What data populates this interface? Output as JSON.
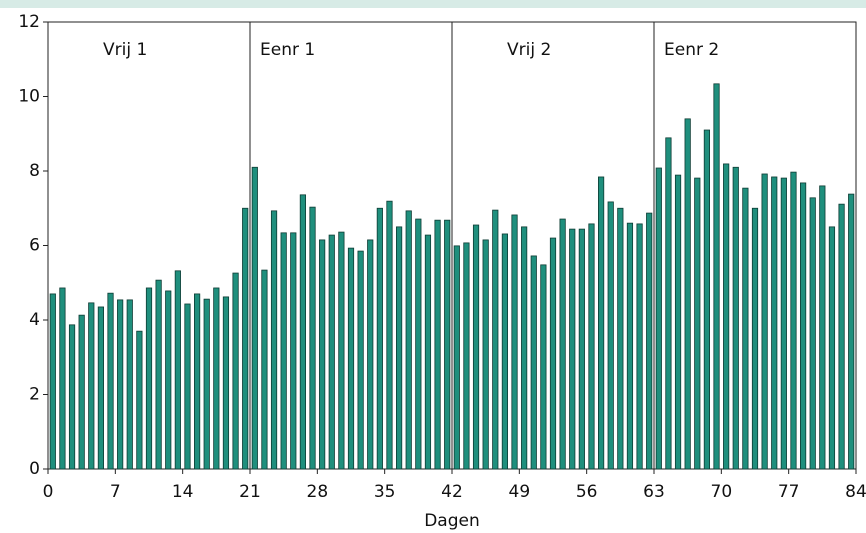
{
  "chart_data": {
    "type": "bar",
    "xlabel": "Dagen",
    "color": "#1f8f7d",
    "x": [
      0,
      1,
      2,
      3,
      4,
      5,
      6,
      7,
      8,
      9,
      10,
      11,
      12,
      13,
      14,
      15,
      16,
      17,
      18,
      19,
      20,
      21,
      22,
      23,
      24,
      25,
      26,
      27,
      28,
      29,
      30,
      31,
      32,
      33,
      34,
      35,
      36,
      37,
      38,
      39,
      40,
      41,
      42,
      43,
      44,
      45,
      46,
      47,
      48,
      49,
      50,
      51,
      52,
      53,
      54,
      55,
      56,
      57,
      58,
      59,
      60,
      61,
      62,
      63,
      64,
      65,
      66,
      67,
      68,
      69,
      70,
      71,
      72,
      73,
      74,
      75,
      76,
      77,
      78,
      79,
      80,
      81,
      82,
      83
    ],
    "values": [
      4.7,
      4.86,
      3.87,
      4.13,
      4.46,
      4.35,
      4.72,
      4.54,
      4.54,
      3.7,
      4.86,
      5.07,
      4.78,
      5.32,
      4.43,
      4.7,
      4.56,
      4.86,
      4.62,
      5.26,
      7.0,
      8.1,
      5.34,
      6.93,
      6.34,
      6.34,
      7.36,
      7.03,
      6.15,
      6.28,
      6.36,
      5.93,
      5.85,
      6.15,
      7.0,
      7.19,
      6.5,
      6.93,
      6.71,
      6.28,
      6.68,
      6.68,
      5.99,
      6.07,
      6.55,
      6.15,
      6.95,
      6.31,
      6.82,
      6.5,
      5.72,
      5.48,
      6.2,
      6.71,
      6.44,
      6.44,
      6.58,
      7.84,
      7.17,
      7.0,
      6.6,
      6.58,
      6.87,
      8.08,
      8.89,
      7.89,
      9.4,
      7.81,
      9.1,
      10.34,
      8.19,
      8.1,
      7.54,
      7.0,
      7.92,
      7.84,
      7.81,
      7.97,
      7.68,
      7.28,
      7.6,
      6.5,
      7.11,
      7.38
    ],
    "xlim": [
      0,
      84
    ],
    "xticks": [
      0,
      7,
      14,
      21,
      28,
      35,
      42,
      49,
      56,
      63,
      70,
      77,
      84
    ],
    "ylim": [
      0,
      12
    ],
    "yticks": [
      0,
      2,
      4,
      6,
      8,
      10,
      12
    ],
    "periods": [
      {
        "label": "Vrij 1",
        "start": 0
      },
      {
        "label": "Eenr 1",
        "start": 21
      },
      {
        "label": "Vrij 2",
        "start": 42
      },
      {
        "label": "Eenr 2",
        "start": 63
      }
    ]
  }
}
